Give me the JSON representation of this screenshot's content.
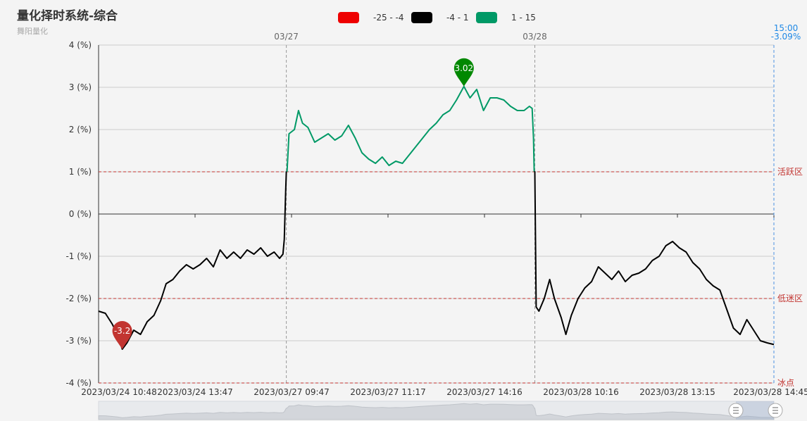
{
  "title": "量化择时系统-综合",
  "subtitle": "舞阳量化",
  "legend": [
    {
      "label": "-25 - -4",
      "color": "#ee0000"
    },
    {
      "label": "-4 - 1",
      "color": "#000000"
    },
    {
      "label": "1 - 15",
      "color": "#009966"
    }
  ],
  "latest": {
    "time": "15:00",
    "value": "-3.09%"
  },
  "chart_data": {
    "type": "line",
    "y_axis": {
      "min": -4,
      "max": 4,
      "step": 1,
      "format": "{v} (%)"
    },
    "x_ticks": [
      "2023/03/24 10:48",
      "2023/03/24 13:47",
      "2023/03/27 09:47",
      "2023/03/27 11:17",
      "2023/03/27 14:16",
      "2023/03/28 10:16",
      "2023/03/28 13:15",
      "2023/03/28 14:45"
    ],
    "day_markers": [
      {
        "label": "03/27",
        "x": 0.278
      },
      {
        "label": "03/28",
        "x": 0.646
      }
    ],
    "mark_lines": [
      {
        "value": 1,
        "label": "活跃区"
      },
      {
        "value": -2,
        "label": "低迷区"
      },
      {
        "value": -4,
        "label": "冰点"
      }
    ],
    "pieces": [
      {
        "min": -25,
        "max": -4,
        "color": "#ee0000"
      },
      {
        "min": -4,
        "max": 1,
        "color": "#000000"
      },
      {
        "min": 1,
        "max": 15,
        "color": "#009966"
      }
    ],
    "mark_points": [
      {
        "label": "-3.2",
        "x": 0.035,
        "value": -3.2,
        "color": "#c23531"
      },
      {
        "label": "3.02",
        "x": 0.541,
        "value": 3.02,
        "color": "#008800"
      }
    ],
    "series_points": [
      [
        0.0,
        -2.3
      ],
      [
        0.01,
        -2.35
      ],
      [
        0.02,
        -2.6
      ],
      [
        0.028,
        -2.85
      ],
      [
        0.035,
        -3.2
      ],
      [
        0.042,
        -3.05
      ],
      [
        0.052,
        -2.75
      ],
      [
        0.062,
        -2.85
      ],
      [
        0.072,
        -2.55
      ],
      [
        0.082,
        -2.4
      ],
      [
        0.092,
        -2.05
      ],
      [
        0.1,
        -1.65
      ],
      [
        0.11,
        -1.55
      ],
      [
        0.12,
        -1.35
      ],
      [
        0.13,
        -1.2
      ],
      [
        0.14,
        -1.3
      ],
      [
        0.15,
        -1.2
      ],
      [
        0.16,
        -1.05
      ],
      [
        0.17,
        -1.25
      ],
      [
        0.18,
        -0.85
      ],
      [
        0.19,
        -1.05
      ],
      [
        0.2,
        -0.9
      ],
      [
        0.21,
        -1.05
      ],
      [
        0.22,
        -0.85
      ],
      [
        0.23,
        -0.95
      ],
      [
        0.24,
        -0.8
      ],
      [
        0.25,
        -1.0
      ],
      [
        0.26,
        -0.9
      ],
      [
        0.268,
        -1.05
      ],
      [
        0.273,
        -0.95
      ],
      [
        0.275,
        -0.6
      ],
      [
        0.277,
        0.5
      ],
      [
        0.278,
        1.0
      ],
      [
        0.279,
        1.0
      ],
      [
        0.282,
        1.9
      ],
      [
        0.29,
        2.0
      ],
      [
        0.296,
        2.45
      ],
      [
        0.302,
        2.15
      ],
      [
        0.31,
        2.05
      ],
      [
        0.32,
        1.7
      ],
      [
        0.33,
        1.8
      ],
      [
        0.34,
        1.9
      ],
      [
        0.35,
        1.75
      ],
      [
        0.36,
        1.85
      ],
      [
        0.37,
        2.1
      ],
      [
        0.38,
        1.8
      ],
      [
        0.39,
        1.45
      ],
      [
        0.4,
        1.3
      ],
      [
        0.41,
        1.2
      ],
      [
        0.42,
        1.35
      ],
      [
        0.43,
        1.15
      ],
      [
        0.44,
        1.25
      ],
      [
        0.45,
        1.2
      ],
      [
        0.46,
        1.4
      ],
      [
        0.47,
        1.6
      ],
      [
        0.48,
        1.8
      ],
      [
        0.49,
        2.0
      ],
      [
        0.5,
        2.15
      ],
      [
        0.51,
        2.35
      ],
      [
        0.52,
        2.45
      ],
      [
        0.53,
        2.7
      ],
      [
        0.541,
        3.02
      ],
      [
        0.55,
        2.75
      ],
      [
        0.56,
        2.95
      ],
      [
        0.57,
        2.45
      ],
      [
        0.58,
        2.75
      ],
      [
        0.59,
        2.75
      ],
      [
        0.6,
        2.7
      ],
      [
        0.61,
        2.55
      ],
      [
        0.62,
        2.45
      ],
      [
        0.63,
        2.45
      ],
      [
        0.638,
        2.55
      ],
      [
        0.642,
        2.5
      ],
      [
        0.644,
        1.8
      ],
      [
        0.645,
        1.0
      ],
      [
        0.646,
        1.0
      ],
      [
        0.648,
        -2.2
      ],
      [
        0.652,
        -2.3
      ],
      [
        0.66,
        -2.0
      ],
      [
        0.668,
        -1.55
      ],
      [
        0.675,
        -2.0
      ],
      [
        0.685,
        -2.45
      ],
      [
        0.692,
        -2.85
      ],
      [
        0.7,
        -2.4
      ],
      [
        0.71,
        -2.0
      ],
      [
        0.72,
        -1.75
      ],
      [
        0.73,
        -1.6
      ],
      [
        0.74,
        -1.25
      ],
      [
        0.75,
        -1.4
      ],
      [
        0.76,
        -1.55
      ],
      [
        0.77,
        -1.35
      ],
      [
        0.78,
        -1.6
      ],
      [
        0.79,
        -1.45
      ],
      [
        0.8,
        -1.4
      ],
      [
        0.81,
        -1.3
      ],
      [
        0.82,
        -1.1
      ],
      [
        0.83,
        -1.0
      ],
      [
        0.84,
        -0.75
      ],
      [
        0.85,
        -0.65
      ],
      [
        0.86,
        -0.8
      ],
      [
        0.87,
        -0.9
      ],
      [
        0.88,
        -1.15
      ],
      [
        0.89,
        -1.3
      ],
      [
        0.9,
        -1.55
      ],
      [
        0.91,
        -1.7
      ],
      [
        0.92,
        -1.8
      ],
      [
        0.93,
        -2.25
      ],
      [
        0.94,
        -2.7
      ],
      [
        0.95,
        -2.85
      ],
      [
        0.96,
        -2.5
      ],
      [
        0.97,
        -2.75
      ],
      [
        0.98,
        -3.0
      ],
      [
        0.99,
        -3.05
      ],
      [
        1.0,
        -3.09
      ]
    ]
  }
}
